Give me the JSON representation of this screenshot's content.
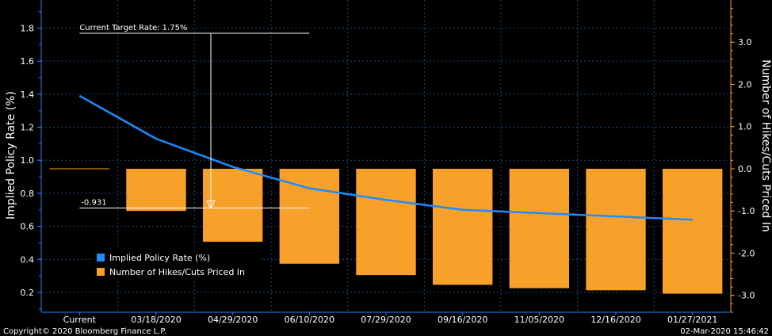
{
  "chart_data": {
    "type": "bar+line",
    "categories": [
      "Current",
      "03/18/2020",
      "04/29/2020",
      "06/10/2020",
      "07/29/2020",
      "09/16/2020",
      "11/05/2020",
      "12/16/2020",
      "01/27/2021"
    ],
    "series": [
      {
        "name": "Implied Policy Rate (%)",
        "type": "line",
        "axis": "left",
        "color": "#1e8bff",
        "values": [
          1.39,
          1.13,
          0.96,
          0.83,
          0.76,
          0.7,
          0.68,
          0.66,
          0.64
        ]
      },
      {
        "name": "Number of Hikes/Cuts Priced In",
        "type": "bar",
        "axis": "right",
        "color": "#f7a12a",
        "values": [
          null,
          -1.0,
          -1.73,
          -2.25,
          -2.52,
          -2.75,
          -2.83,
          -2.88,
          -2.96
        ]
      }
    ],
    "y_left": {
      "label": "Implied Policy Rate (%)",
      "ticks": [
        "0.2",
        "0.4",
        "0.6",
        "0.8",
        "1.0",
        "1.2",
        "1.4",
        "1.6",
        "1.8"
      ],
      "range": [
        0.08,
        1.97
      ]
    },
    "y_right": {
      "label": "Number of Hikes/Cuts Priced In",
      "ticks": [
        "-3.0",
        "-2.0",
        "-1.0",
        "0.0",
        "1.0",
        "2.0",
        "3.0"
      ],
      "range": [
        -3.4,
        4.0
      ]
    },
    "annotations": {
      "target_rate": "Current Target Rate: 1.75%",
      "reference_value": "-0.931"
    },
    "legend": {
      "placement": "bottom-left"
    },
    "grid": true
  },
  "footer": {
    "copyright": "Copyright© 2020 Bloomberg Finance L.P.",
    "timestamp": "02-Mar-2020 15:46:42"
  }
}
